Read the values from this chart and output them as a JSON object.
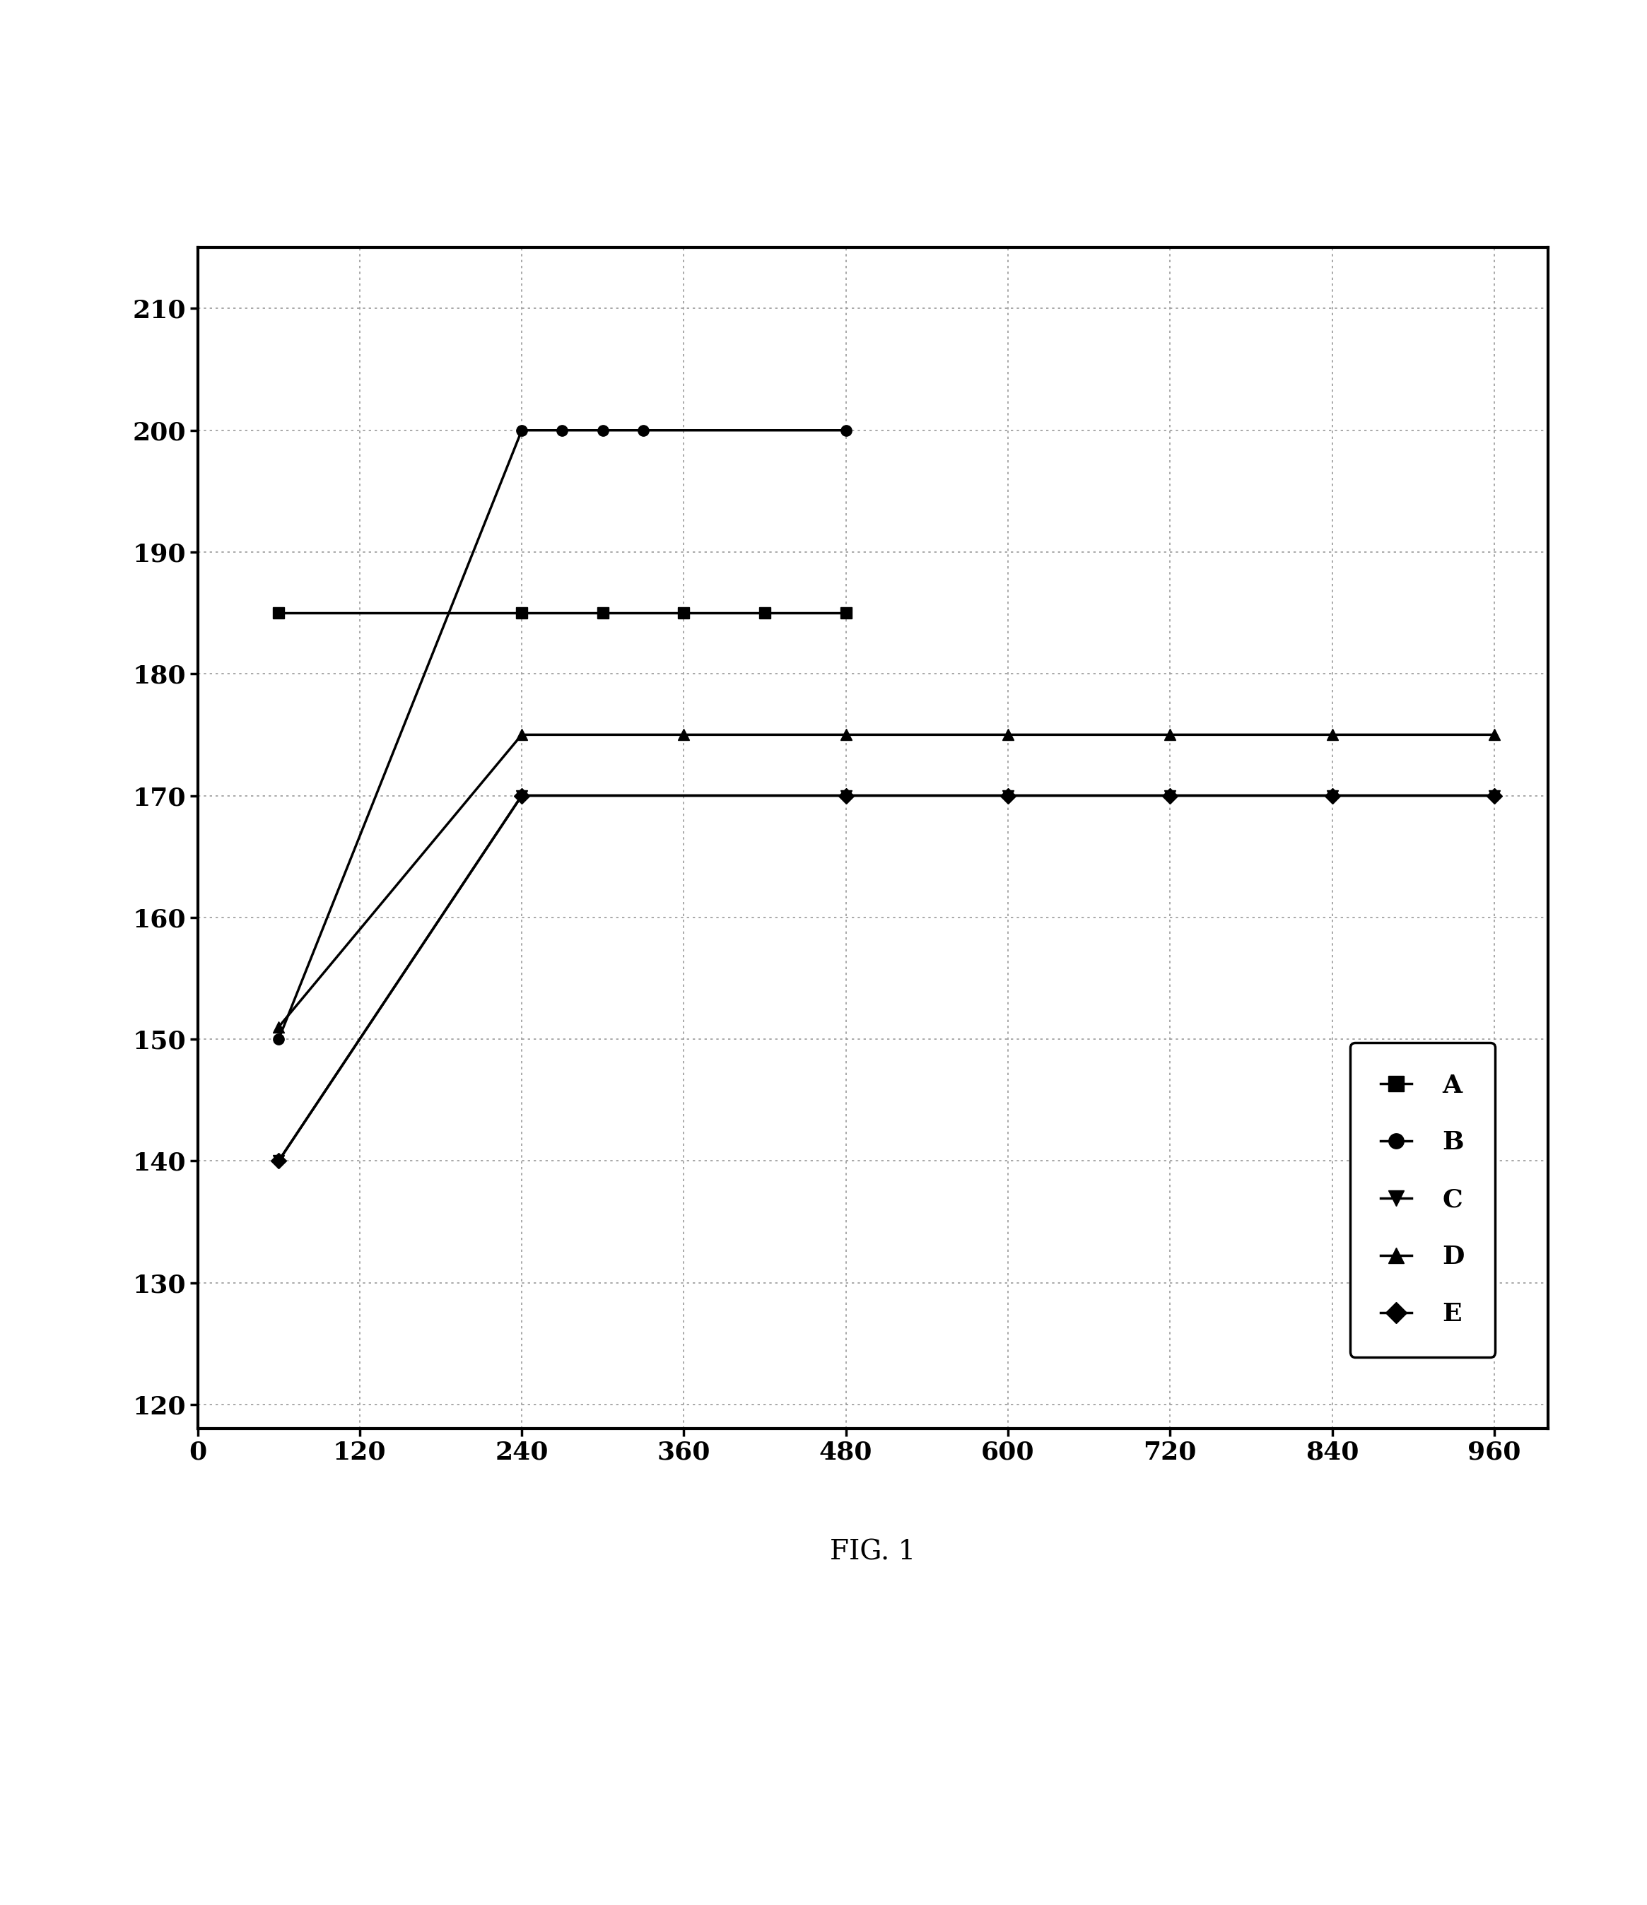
{
  "series": {
    "A": {
      "x": [
        60,
        240,
        300,
        360,
        420,
        480
      ],
      "y": [
        185,
        185,
        185,
        185,
        185,
        185
      ],
      "marker": "s",
      "label": "A",
      "linewidth": 2.5
    },
    "B": {
      "x": [
        60,
        240,
        270,
        300,
        330,
        480
      ],
      "y": [
        150,
        200,
        200,
        200,
        200,
        200
      ],
      "marker": "o",
      "label": "B",
      "linewidth": 2.5
    },
    "C": {
      "x": [
        60,
        240,
        480,
        600,
        720,
        840,
        960
      ],
      "y": [
        140,
        170,
        170,
        170,
        170,
        170,
        170
      ],
      "marker": "v",
      "label": "C",
      "linewidth": 2.5
    },
    "D": {
      "x": [
        60,
        240,
        360,
        480,
        600,
        720,
        840,
        960
      ],
      "y": [
        151,
        175,
        175,
        175,
        175,
        175,
        175,
        175
      ],
      "marker": "^",
      "label": "D",
      "linewidth": 2.5
    },
    "E": {
      "x": [
        60,
        240,
        480,
        600,
        720,
        840,
        960
      ],
      "y": [
        140,
        170,
        170,
        170,
        170,
        170,
        170
      ],
      "marker": "D",
      "label": "E",
      "linewidth": 2.5
    }
  },
  "series_order": [
    "E",
    "D",
    "C",
    "A",
    "B"
  ],
  "legend_order": [
    "A",
    "B",
    "C",
    "D",
    "E"
  ],
  "xlim": [
    0,
    1000
  ],
  "ylim": [
    118,
    215
  ],
  "xticks": [
    0,
    120,
    240,
    360,
    480,
    600,
    720,
    840,
    960
  ],
  "yticks": [
    120,
    130,
    140,
    150,
    160,
    170,
    180,
    190,
    200,
    210
  ],
  "grid_color": "#999999",
  "figure_title": "FIG. 1",
  "background_color": "#ffffff",
  "line_color": "#000000",
  "marker_size": 11,
  "marker_color": "#000000",
  "tick_fontsize": 26,
  "legend_fontsize": 26,
  "title_fontsize": 28
}
